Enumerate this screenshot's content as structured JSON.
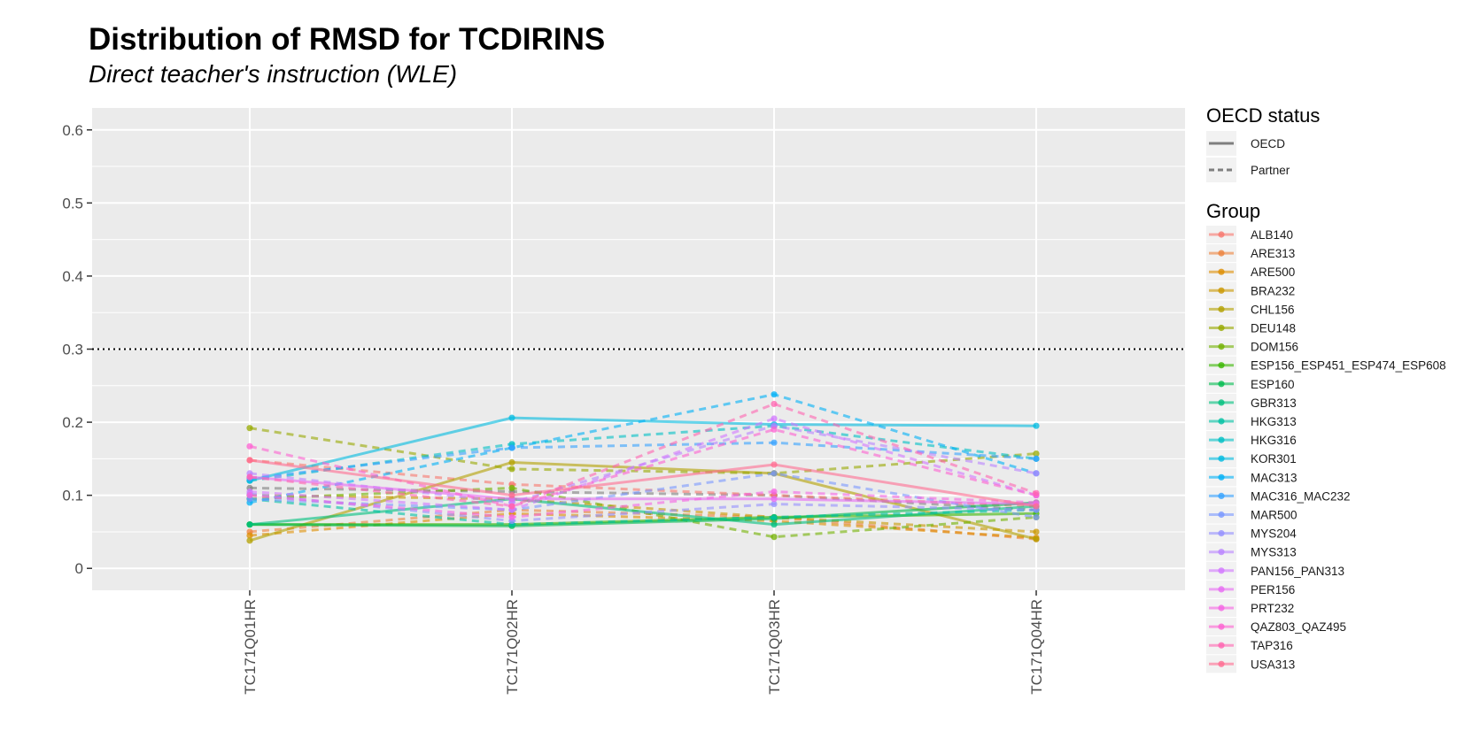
{
  "chart_data": {
    "type": "line",
    "title": "Distribution of RMSD for TCDIRINS",
    "subtitle": "Direct teacher's instruction (WLE)",
    "xlabel": "",
    "ylabel": "",
    "categories": [
      "TC171Q01HR",
      "TC171Q02HR",
      "TC171Q03HR",
      "TC171Q04HR"
    ],
    "ylim": [
      -0.03,
      0.63
    ],
    "yticks": [
      0,
      0.1,
      0.2,
      0.3,
      0.4,
      0.5,
      0.6
    ],
    "ytick_labels": [
      "0",
      "0.1",
      "0.2",
      "0.3",
      "0.4",
      "0.5",
      "0.6"
    ],
    "reference_line": 0.3,
    "grid": true,
    "legend_position": "right",
    "legend_linetype": {
      "title": "OECD status",
      "items": [
        {
          "label": "OECD",
          "dash": "solid"
        },
        {
          "label": "Partner",
          "dash": "dashed"
        }
      ]
    },
    "legend_group_title": "Group",
    "series": [
      {
        "name": "ALB140",
        "color": "#F8766D",
        "dash": "dashed",
        "values": [
          0.148,
          0.115,
          0.1,
          0.085
        ]
      },
      {
        "name": "ARE313",
        "color": "#EC823C",
        "dash": "dashed",
        "values": [
          0.05,
          0.08,
          0.07,
          0.04
        ]
      },
      {
        "name": "ARE500",
        "color": "#DD8D00",
        "dash": "dashed",
        "values": [
          0.045,
          0.075,
          0.065,
          0.042
        ]
      },
      {
        "name": "BRA232",
        "color": "#CA9700",
        "dash": "dashed",
        "values": [
          0.1,
          0.095,
          0.07,
          0.05
        ]
      },
      {
        "name": "CHL156",
        "color": "#B3A000",
        "dash": "solid",
        "values": [
          0.038,
          0.145,
          0.13,
          0.04
        ]
      },
      {
        "name": "DEU148",
        "color": "#97A900",
        "dash": "dashed",
        "values": [
          0.192,
          0.136,
          0.13,
          0.157
        ]
      },
      {
        "name": "DOM156",
        "color": "#72B000",
        "dash": "dashed",
        "values": [
          0.095,
          0.11,
          0.043,
          0.07
        ]
      },
      {
        "name": "ESP156_ESP451_ESP474_ESP608",
        "color": "#39B600",
        "dash": "solid",
        "values": [
          0.06,
          0.06,
          0.07,
          0.075
        ]
      },
      {
        "name": "ESP160",
        "color": "#00BB4E",
        "dash": "solid",
        "values": [
          0.06,
          0.058,
          0.068,
          0.09
        ]
      },
      {
        "name": "GBR313",
        "color": "#00BF7D",
        "dash": "solid",
        "values": [
          0.06,
          0.095,
          0.06,
          0.085
        ]
      },
      {
        "name": "HKG313",
        "color": "#00C1A3",
        "dash": "dashed",
        "values": [
          0.095,
          0.06,
          0.07,
          0.08
        ]
      },
      {
        "name": "HKG316",
        "color": "#00BFC4",
        "dash": "dashed",
        "values": [
          0.12,
          0.17,
          0.195,
          0.15
        ]
      },
      {
        "name": "KOR301",
        "color": "#00BAE0",
        "dash": "solid",
        "values": [
          0.12,
          0.206,
          0.197,
          0.195
        ]
      },
      {
        "name": "MAC313",
        "color": "#00B0F6",
        "dash": "dashed",
        "values": [
          0.09,
          0.165,
          0.238,
          0.13
        ]
      },
      {
        "name": "MAC316_MAC232",
        "color": "#35A2FF",
        "dash": "dashed",
        "values": [
          0.123,
          0.165,
          0.172,
          0.15
        ]
      },
      {
        "name": "MAR500",
        "color": "#7997FF",
        "dash": "dashed",
        "values": [
          0.095,
          0.08,
          0.13,
          0.07
        ]
      },
      {
        "name": "MYS204",
        "color": "#9590FF",
        "dash": "dashed",
        "values": [
          0.102,
          0.065,
          0.088,
          0.08
        ]
      },
      {
        "name": "MYS313",
        "color": "#B983FF",
        "dash": "dashed",
        "values": [
          0.13,
          0.09,
          0.195,
          0.13
        ]
      },
      {
        "name": "PAN156_PAN313",
        "color": "#D277FF",
        "dash": "dashed",
        "values": [
          0.105,
          0.08,
          0.205,
          0.1
        ]
      },
      {
        "name": "PER156",
        "color": "#E76BF3",
        "dash": "solid",
        "values": [
          0.125,
          0.095,
          0.095,
          0.088
        ]
      },
      {
        "name": "PRT232",
        "color": "#F564E3",
        "dash": "dashed",
        "values": [
          0.1,
          0.07,
          0.105,
          0.09
        ]
      },
      {
        "name": "QAZ803_QAZ495",
        "color": "#FD61D1",
        "dash": "dashed",
        "values": [
          0.167,
          0.085,
          0.19,
          0.1
        ]
      },
      {
        "name": "TAP316",
        "color": "#FF64B0",
        "dash": "dashed",
        "values": [
          0.125,
          0.085,
          0.225,
          0.103
        ]
      },
      {
        "name": "USA313",
        "color": "#FF6C91",
        "dash": "solid",
        "values": [
          0.148,
          0.1,
          0.142,
          0.085
        ]
      }
    ],
    "reference_overlay": {
      "color": "#808080",
      "dash": "dashed",
      "values": [
        0.11,
        0.105,
        0.1,
        0.08
      ]
    }
  }
}
